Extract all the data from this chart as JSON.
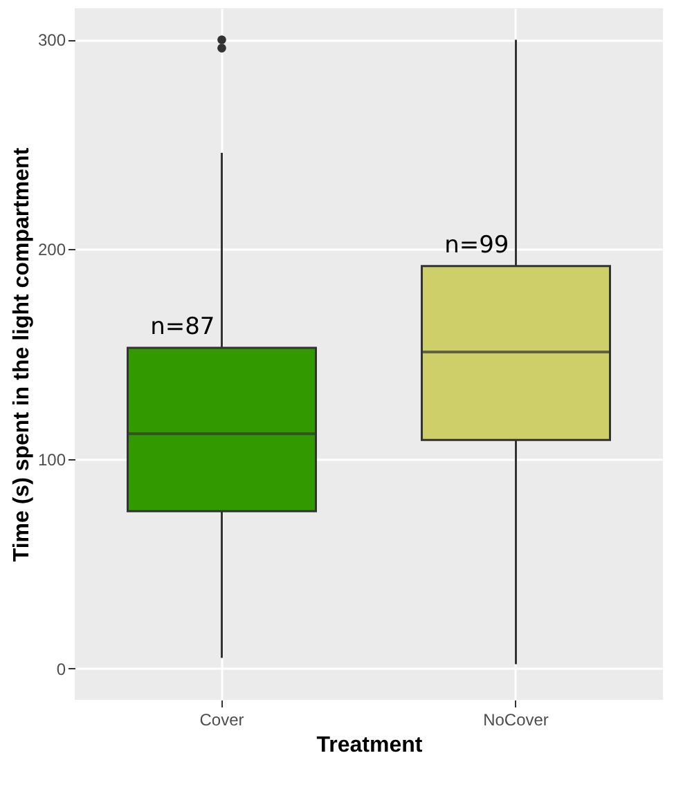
{
  "chart_data": {
    "type": "box",
    "xlabel": "Treatment",
    "ylabel": "Time (s) spent in the light compartment",
    "categories": [
      "Cover",
      "NoCover"
    ],
    "colors": [
      "#339900",
      "#cfcf6a"
    ],
    "boxes": [
      {
        "low": 5,
        "q1": 75,
        "median": 112,
        "q3": 153,
        "high": 246,
        "outliers": [
          296,
          300
        ]
      },
      {
        "low": 2,
        "q1": 109,
        "median": 151,
        "q3": 192,
        "high": 300
      }
    ],
    "ylim": [
      -15,
      315
    ],
    "yticks": [
      0,
      100,
      200,
      300
    ],
    "grid": true,
    "annotations": [
      "n=87",
      "n=99"
    ]
  }
}
